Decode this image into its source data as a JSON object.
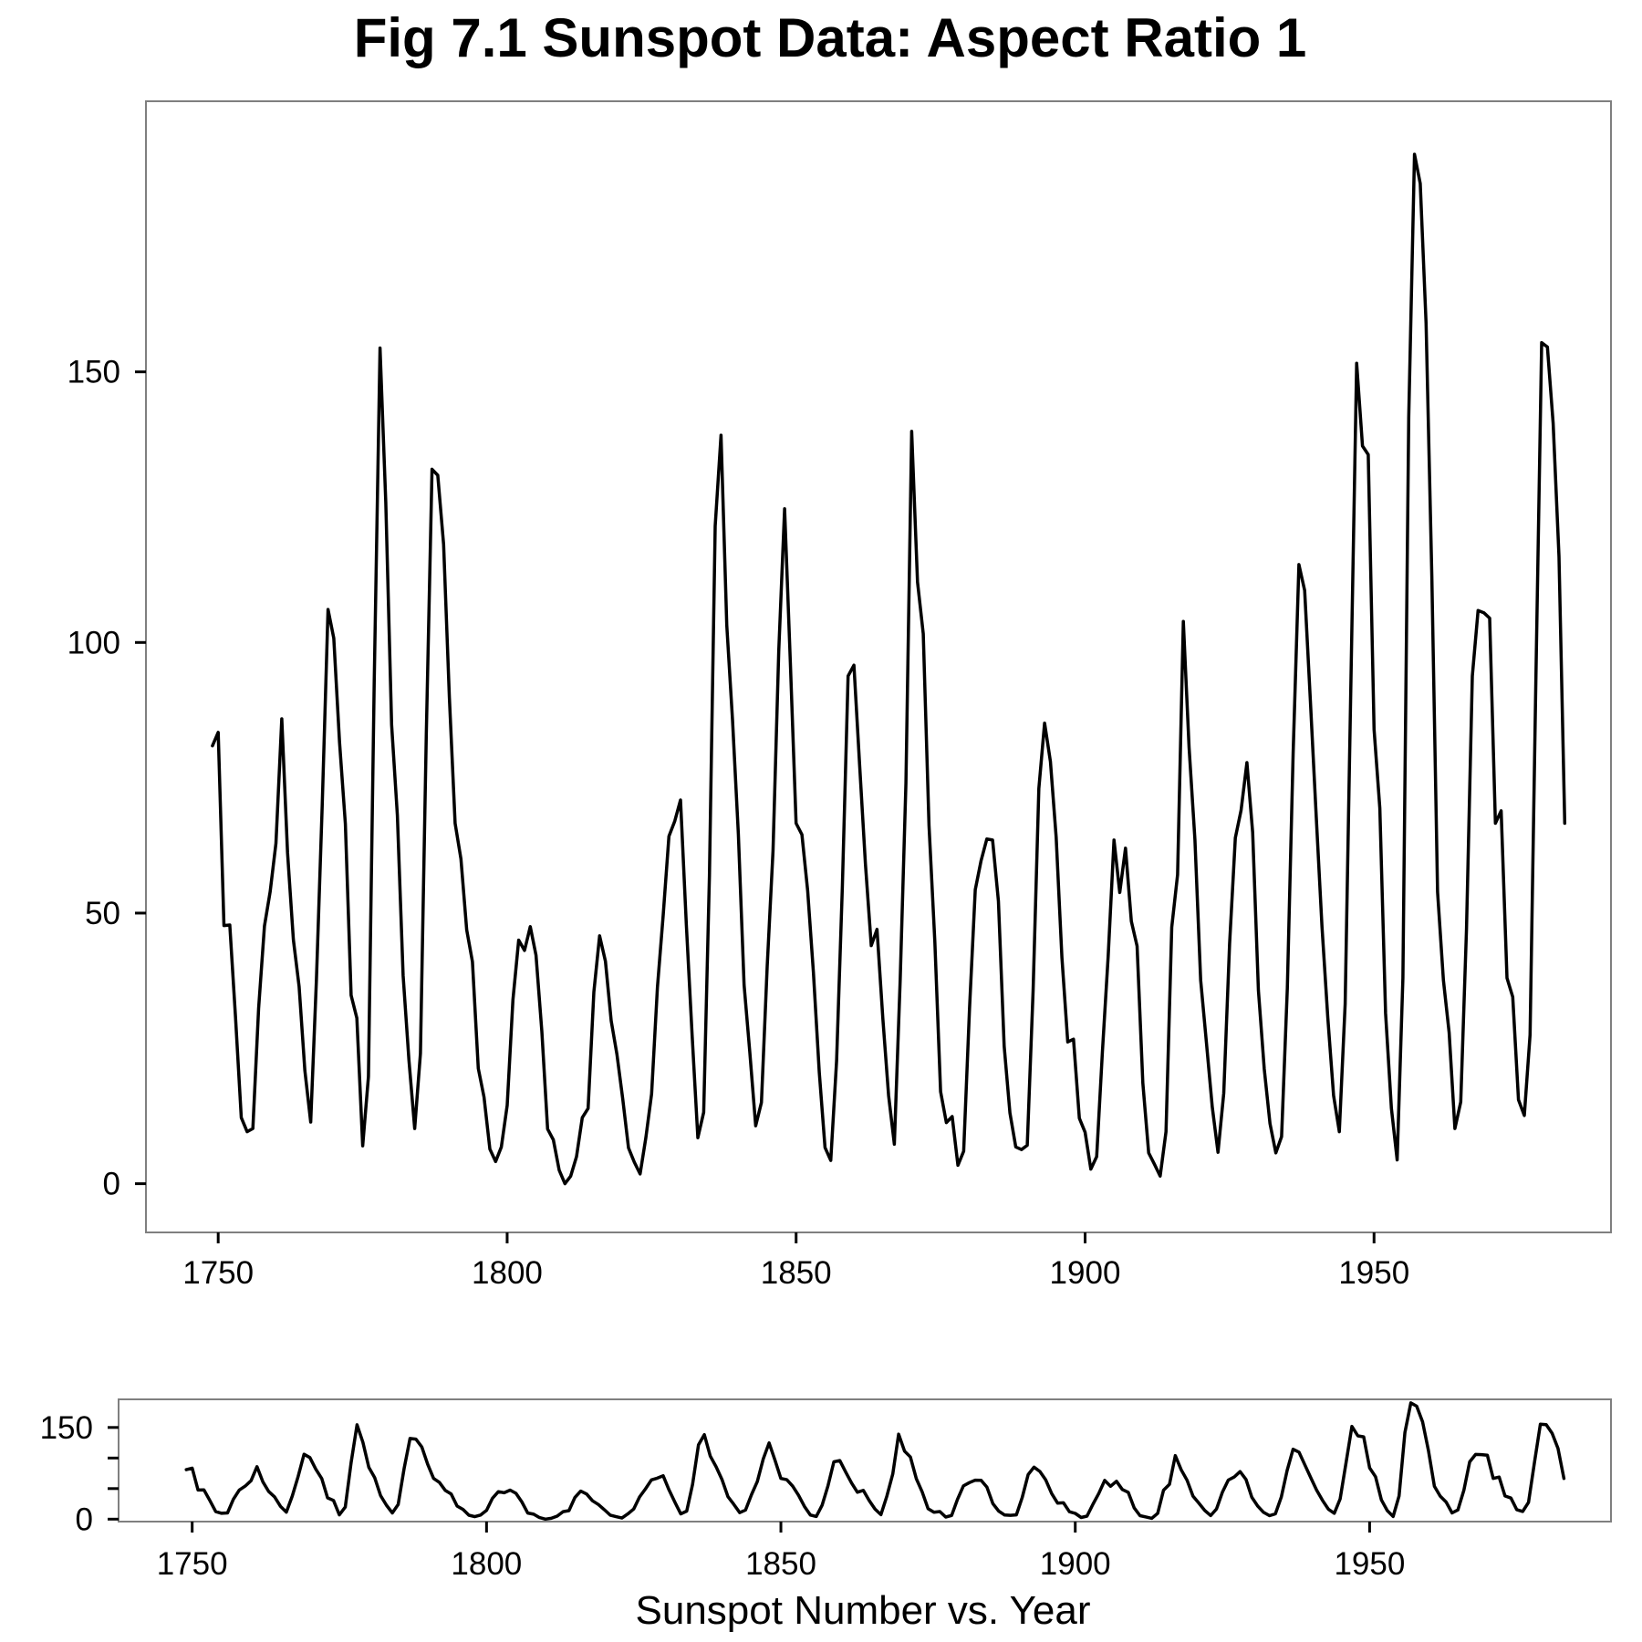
{
  "chart_data": [
    {
      "type": "line",
      "title": "Fig 7.1 Sunspot Data: Aspect Ratio 1",
      "xlabel": "",
      "ylabel": "",
      "xlim": [
        1737.5,
        1991
      ],
      "ylim": [
        -9,
        200
      ],
      "x_ticks": [
        1750,
        1800,
        1850,
        1900,
        1950
      ],
      "y_ticks": [
        0,
        50,
        100,
        150
      ],
      "grid": false,
      "legend": "none",
      "series": [
        {
          "x": [
            1749,
            1750,
            1751,
            1752,
            1753,
            1754,
            1755,
            1756,
            1757,
            1758,
            1759,
            1760,
            1761,
            1762,
            1763,
            1764,
            1765,
            1766,
            1767,
            1768,
            1769,
            1770,
            1771,
            1772,
            1773,
            1774,
            1775,
            1776,
            1777,
            1778,
            1779,
            1780,
            1781,
            1782,
            1783,
            1784,
            1785,
            1786,
            1787,
            1788,
            1789,
            1790,
            1791,
            1792,
            1793,
            1794,
            1795,
            1796,
            1797,
            1798,
            1799,
            1800,
            1801,
            1802,
            1803,
            1804,
            1805,
            1806,
            1807,
            1808,
            1809,
            1810,
            1811,
            1812,
            1813,
            1814,
            1815,
            1816,
            1817,
            1818,
            1819,
            1820,
            1821,
            1822,
            1823,
            1824,
            1825,
            1826,
            1827,
            1828,
            1829,
            1830,
            1831,
            1832,
            1833,
            1834,
            1835,
            1836,
            1837,
            1838,
            1839,
            1840,
            1841,
            1842,
            1843,
            1844,
            1845,
            1846,
            1847,
            1848,
            1849,
            1850,
            1851,
            1852,
            1853,
            1854,
            1855,
            1856,
            1857,
            1858,
            1859,
            1860,
            1861,
            1862,
            1863,
            1864,
            1865,
            1866,
            1867,
            1868,
            1869,
            1870,
            1871,
            1872,
            1873,
            1874,
            1875,
            1876,
            1877,
            1878,
            1879,
            1880,
            1881,
            1882,
            1883,
            1884,
            1885,
            1886,
            1887,
            1888,
            1889,
            1890,
            1891,
            1892,
            1893,
            1894,
            1895,
            1896,
            1897,
            1898,
            1899,
            1900,
            1901,
            1902,
            1903,
            1904,
            1905,
            1906,
            1907,
            1908,
            1909,
            1910,
            1911,
            1912,
            1913,
            1914,
            1915,
            1916,
            1917,
            1918,
            1919,
            1920,
            1921,
            1922,
            1923,
            1924,
            1925,
            1926,
            1927,
            1928,
            1929,
            1930,
            1931,
            1932,
            1933,
            1934,
            1935,
            1936,
            1937,
            1938,
            1939,
            1940,
            1941,
            1942,
            1943,
            1944,
            1945,
            1946,
            1947,
            1948,
            1949,
            1950,
            1951,
            1952,
            1953,
            1954,
            1955,
            1956,
            1957,
            1958,
            1959,
            1960,
            1961,
            1962,
            1963,
            1964,
            1965,
            1966,
            1967,
            1968,
            1969,
            1970,
            1971,
            1972,
            1973,
            1974,
            1975,
            1976,
            1977,
            1978,
            1979,
            1980,
            1981,
            1982,
            1983
          ],
          "values": [
            80.9,
            83.4,
            47.7,
            47.8,
            30.7,
            12.2,
            9.6,
            10.2,
            32.4,
            47.6,
            54,
            62.9,
            85.9,
            61.2,
            45.1,
            36.4,
            20.9,
            11.4,
            37.8,
            69.8,
            106.1,
            100.8,
            81.6,
            66.5,
            34.8,
            30.6,
            7,
            19.8,
            92.5,
            154.4,
            125.9,
            84.8,
            68.1,
            38.5,
            22.8,
            10.2,
            24.1,
            82.9,
            132,
            130.9,
            118.1,
            89.9,
            66.6,
            60,
            46.9,
            41,
            21.3,
            16,
            6.4,
            4.1,
            6.8,
            14.5,
            34,
            45,
            43.1,
            47.5,
            42.2,
            28.1,
            10.1,
            8.1,
            2.5,
            0,
            1.4,
            5,
            12.2,
            13.9,
            35.4,
            45.8,
            41.1,
            30.1,
            23.9,
            15.6,
            6.6,
            4,
            1.8,
            8.5,
            16.6,
            36.3,
            49.6,
            64.2,
            67,
            70.9,
            47.8,
            27.5,
            8.5,
            13.2,
            56.9,
            121.5,
            138.3,
            103.2,
            85.7,
            64.6,
            36.7,
            24.2,
            10.7,
            15,
            40.1,
            61.5,
            98.5,
            124.7,
            96.3,
            66.6,
            64.5,
            54.1,
            39,
            20.6,
            6.7,
            4.3,
            22.7,
            54.8,
            93.8,
            95.8,
            77.2,
            59.1,
            44,
            47,
            30.5,
            16.3,
            7.3,
            37.6,
            74,
            139,
            111.2,
            101.6,
            66.2,
            44.7,
            17,
            11.3,
            12.4,
            3.4,
            6,
            32.3,
            54.3,
            59.7,
            63.7,
            63.5,
            52.2,
            25.4,
            13.1,
            6.8,
            6.3,
            7.1,
            35.6,
            73,
            85.1,
            78,
            64,
            41.8,
            26.2,
            26.7,
            12.1,
            9.5,
            2.7,
            5,
            24.4,
            42,
            63.5,
            53.8,
            62,
            48.5,
            43.9,
            18.6,
            5.7,
            3.6,
            1.4,
            9.6,
            47.4,
            57.1,
            103.9,
            80.6,
            63.6,
            37.6,
            26.1,
            14.2,
            5.8,
            16.7,
            44.3,
            63.9,
            69,
            77.8,
            64.9,
            35.7,
            21.2,
            11.1,
            5.7,
            8.7,
            36.1,
            79.7,
            114.4,
            109.6,
            88.8,
            67.8,
            47.5,
            30.6,
            16.3,
            9.6,
            33.2,
            92.6,
            151.6,
            136.3,
            134.7,
            83.9,
            69.4,
            31.5,
            13.9,
            4.4,
            38,
            141.7,
            190.2,
            184.8,
            159,
            112.3,
            53.9,
            37.6,
            27.9,
            10.2,
            15.1,
            47,
            93.8,
            105.9,
            105.5,
            104.5,
            66.6,
            68.9,
            38,
            34.5,
            15.5,
            12.6,
            27.5,
            92.5,
            155.4,
            154.6,
            140.5,
            115.9,
            66.6
          ]
        }
      ]
    },
    {
      "type": "line",
      "title": "",
      "xlabel": "Sunspot Number vs. Year",
      "ylabel": "",
      "xlim": [
        1737.5,
        1991
      ],
      "ylim": [
        -4,
        196
      ],
      "x_ticks": [
        1750,
        1800,
        1850,
        1900,
        1950
      ],
      "y_ticks": [
        0,
        50,
        100,
        150
      ],
      "y_tick_labels": [
        "0",
        "",
        "",
        "150"
      ],
      "grid": false,
      "legend": "none",
      "series": [
        {
          "same_as_panel": 0
        }
      ]
    }
  ]
}
